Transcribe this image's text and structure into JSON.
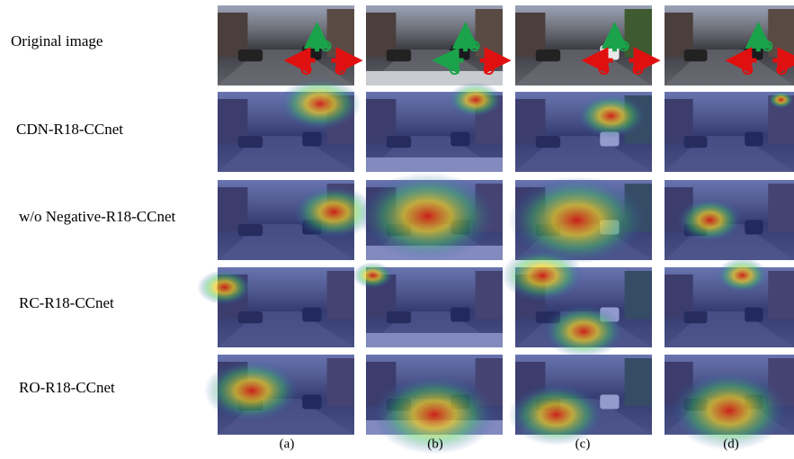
{
  "figure": {
    "rows": [
      {
        "label": "Original image"
      },
      {
        "label": "CDN-R18-CCnet"
      },
      {
        "label": "w/o Negative-R18-CCnet"
      },
      {
        "label": "RC-R18-CCnet"
      },
      {
        "label": "RO-R18-CCnet"
      }
    ],
    "columns": [
      "(a)",
      "(b)",
      "(c)",
      "(d)"
    ]
  }
}
